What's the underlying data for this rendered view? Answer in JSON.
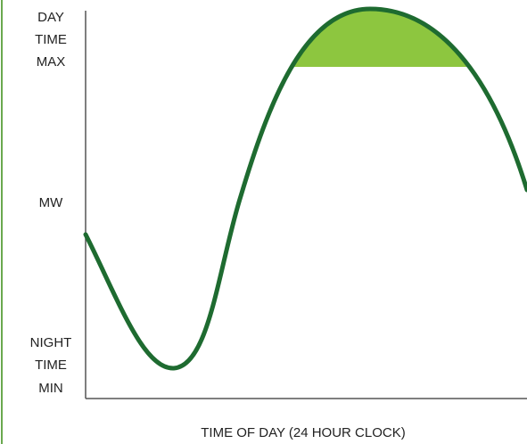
{
  "y_axis": {
    "top_label": [
      "DAY",
      "TIME",
      "MAX"
    ],
    "middle_label": "MW",
    "bottom_label": [
      "NIGHT",
      "TIME",
      "MIN"
    ]
  },
  "x_axis": {
    "label": "TIME OF DAY (24 HOUR CLOCK)"
  }
}
